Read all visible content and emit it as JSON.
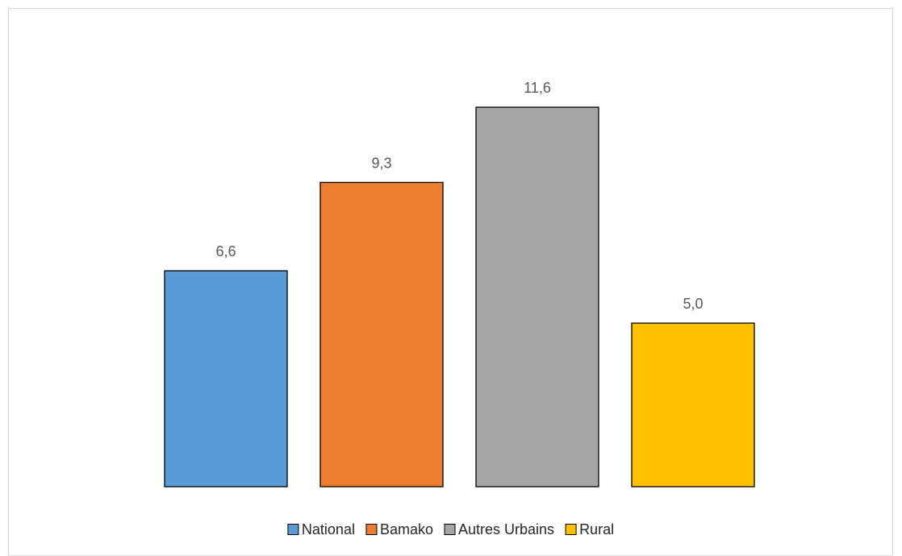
{
  "chart_data": {
    "type": "bar",
    "categories": [
      "National",
      "Bamako",
      "Autres Urbains",
      "Rural"
    ],
    "values": [
      6.6,
      9.3,
      11.6,
      5.0
    ],
    "value_labels": [
      "6,6",
      "9,3",
      "11,6",
      "5,0"
    ],
    "colors": [
      "#5b9bd5",
      "#ed7d31",
      "#a5a5a5",
      "#ffc000"
    ],
    "ylim": [
      0,
      16
    ],
    "grid": false,
    "legend_position": "bottom",
    "title": "",
    "xlabel": "",
    "ylabel": ""
  }
}
